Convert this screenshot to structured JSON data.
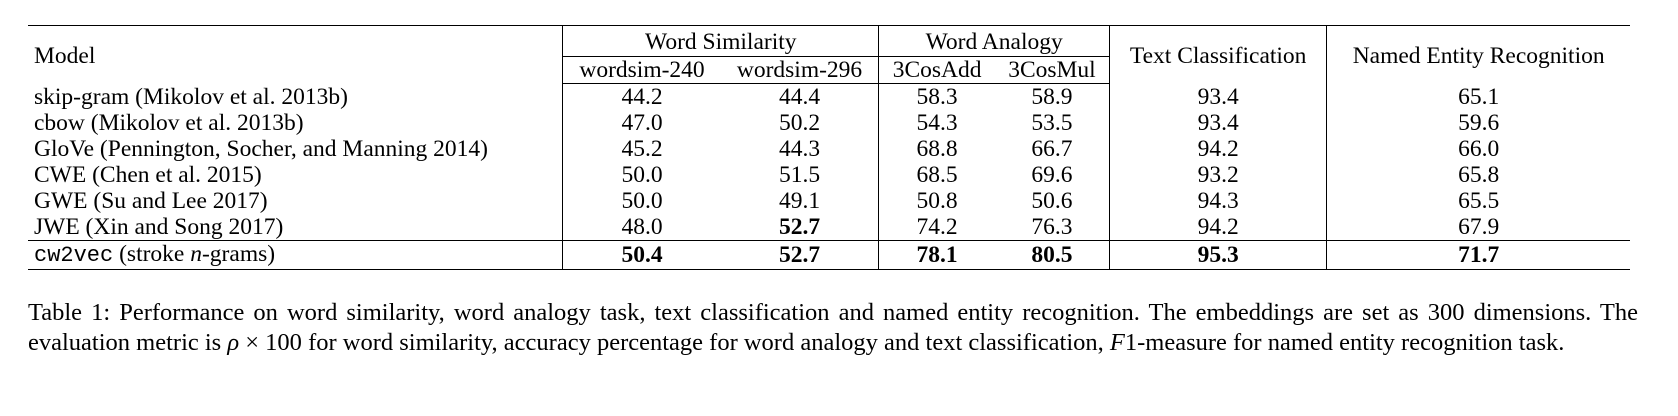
{
  "table": {
    "header": {
      "model": "Model",
      "group_similarity": "Word Similarity",
      "group_analogy": "Word Analogy",
      "text_classification": "Text Classification",
      "ner": "Named Entity Recognition",
      "sub_ws240": "wordsim-240",
      "sub_ws296": "wordsim-296",
      "sub_3cosadd": "3CosAdd",
      "sub_3cosmul": "3CosMul"
    },
    "rows": [
      {
        "model": "skip-gram (Mikolov et al. 2013b)",
        "ws240": "44.2",
        "ws296": "44.4",
        "add": "58.3",
        "mul": "58.9",
        "tc": "93.4",
        "ner": "65.1"
      },
      {
        "model": "cbow (Mikolov et al. 2013b)",
        "ws240": "47.0",
        "ws296": "50.2",
        "add": "54.3",
        "mul": "53.5",
        "tc": "93.4",
        "ner": "59.6"
      },
      {
        "model": "GloVe (Pennington, Socher, and Manning 2014)",
        "ws240": "45.2",
        "ws296": "44.3",
        "add": "68.8",
        "mul": "66.7",
        "tc": "94.2",
        "ner": "66.0"
      },
      {
        "model": "CWE (Chen et al. 2015)",
        "ws240": "50.0",
        "ws296": "51.5",
        "add": "68.5",
        "mul": "69.6",
        "tc": "93.2",
        "ner": "65.8"
      },
      {
        "model": "GWE (Su and Lee 2017)",
        "ws240": "50.0",
        "ws296": "49.1",
        "add": "50.8",
        "mul": "50.6",
        "tc": "94.3",
        "ner": "65.5"
      },
      {
        "model": "JWE (Xin and Song 2017)",
        "ws240": "48.0",
        "ws296": "52.7",
        "add": "74.2",
        "mul": "76.3",
        "tc": "94.2",
        "ner": "67.9"
      }
    ],
    "final_row": {
      "model_code": "cw2vec",
      "model_rest_1": " (stroke ",
      "model_n": "n",
      "model_rest_2": "-grams)",
      "ws240": "50.4",
      "ws296": "52.7",
      "add": "78.1",
      "mul": "80.5",
      "tc": "95.3",
      "ner": "71.7"
    }
  },
  "caption": {
    "part1": "Table 1: Performance on word similarity, word analogy task, text classification and named entity recognition. The embeddings are set as 300 dimensions. The evaluation metric is ",
    "rho": "ρ",
    "times": " × 100",
    "part2": " for word similarity, accuracy percentage for word analogy and text classification, ",
    "f": "F",
    "part3": "1-measure for named entity recognition task."
  }
}
